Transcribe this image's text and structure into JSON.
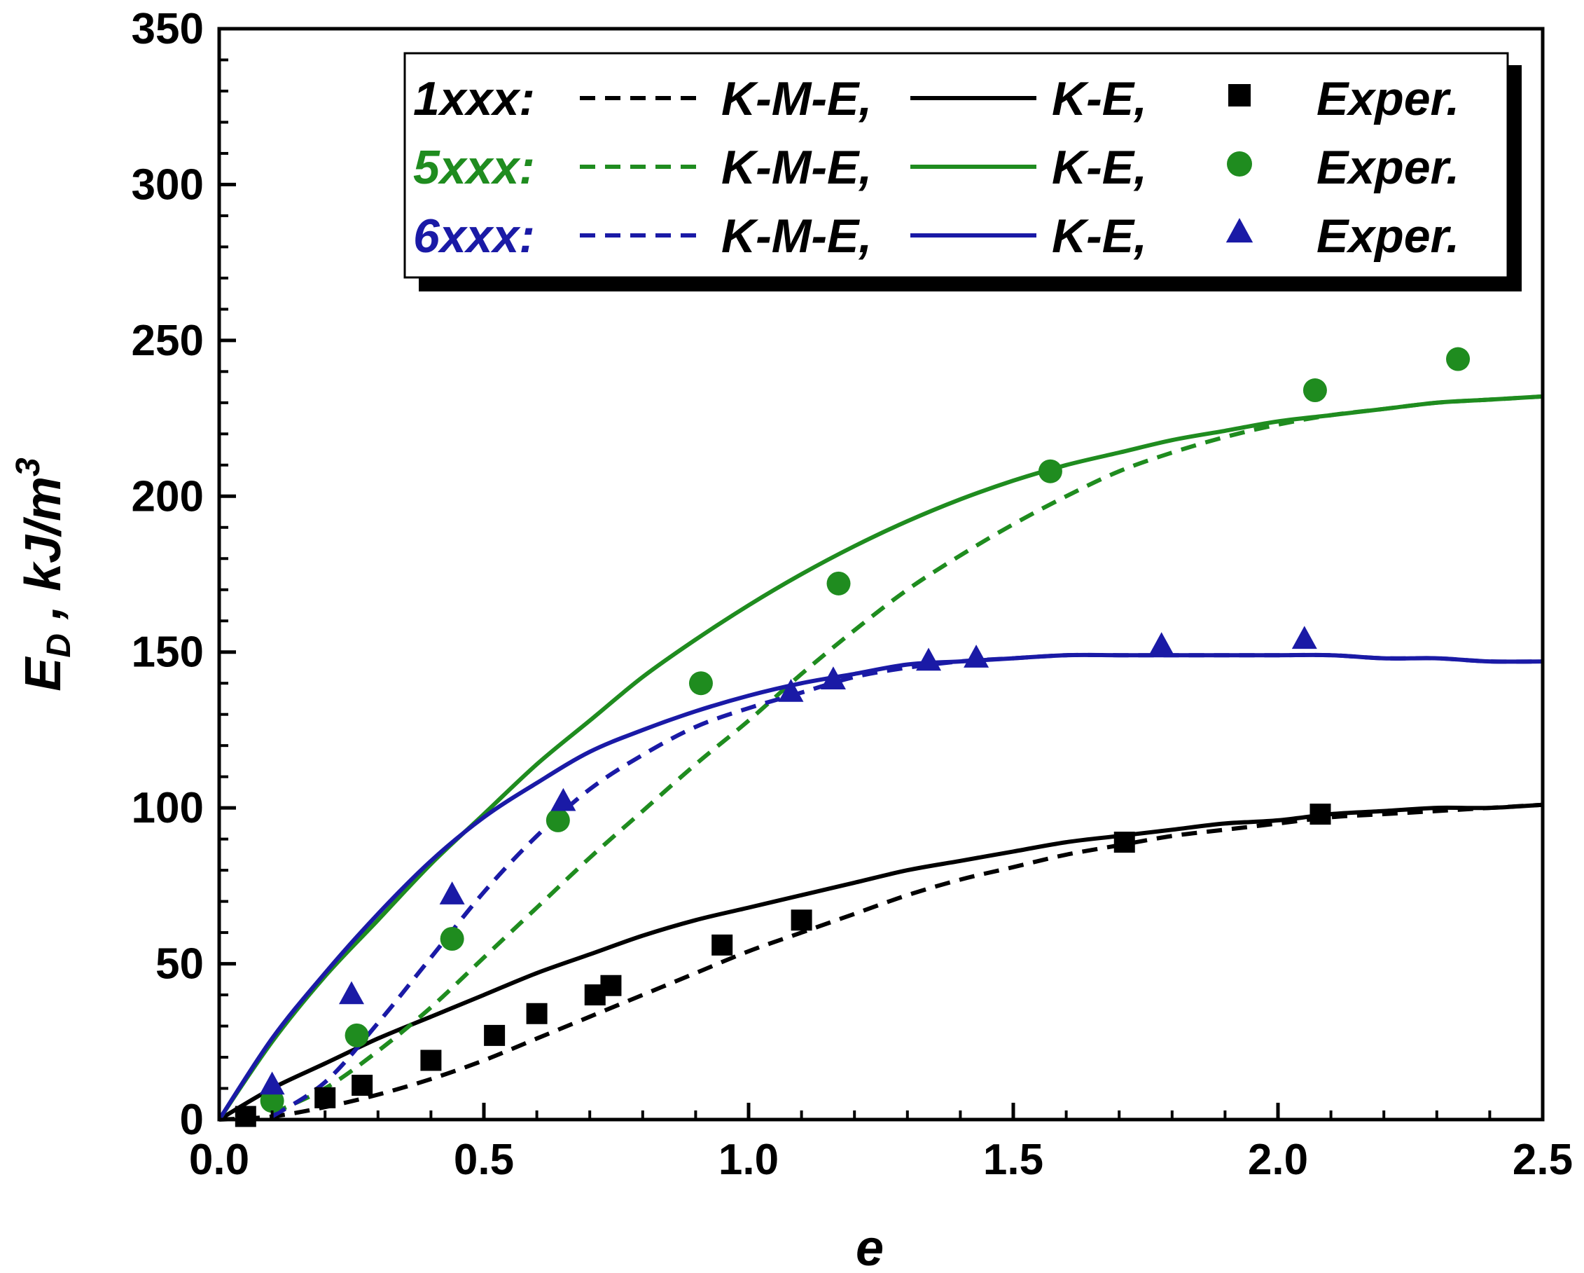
{
  "chart_data": {
    "type": "line",
    "title": "",
    "xlabel": "e",
    "ylabel_main": "E",
    "ylabel_sub": "D",
    "ylabel_unit": " , kJ/m",
    "ylabel_sup": "3",
    "xlim": [
      0,
      2.5
    ],
    "ylim": [
      0,
      350
    ],
    "xticks": [
      0,
      0.5,
      1.0,
      1.5,
      2.0,
      2.5
    ],
    "xtick_labels": [
      "0.0",
      "0.5",
      "1.0",
      "1.5",
      "2.0",
      "2.5"
    ],
    "yticks": [
      0,
      50,
      100,
      150,
      200,
      250,
      300,
      350
    ],
    "ytick_labels": [
      "0",
      "50",
      "100",
      "150",
      "200",
      "250",
      "300",
      "350"
    ],
    "grid": false,
    "legend_position": "top-right",
    "groups": [
      {
        "name": "1xxx:",
        "color": "#000000",
        "marker": "square",
        "kme_label": "K-M-E,",
        "ke_label": "K-E,",
        "exper_label": "Exper.",
        "kme_curve": {
          "x": [
            0,
            0.1,
            0.2,
            0.3,
            0.4,
            0.5,
            0.6,
            0.7,
            0.8,
            0.9,
            1.0,
            1.1,
            1.2,
            1.3,
            1.4,
            1.5,
            1.6,
            1.7,
            1.8,
            1.9,
            2.0,
            2.1,
            2.2,
            2.3,
            2.4,
            2.5
          ],
          "y": [
            0,
            1,
            4,
            8,
            13,
            19,
            26,
            33,
            40,
            47,
            54,
            60,
            66,
            72,
            77,
            81,
            85,
            88,
            91,
            93,
            95,
            97,
            98,
            99,
            100,
            101
          ]
        },
        "ke_curve": {
          "x": [
            0,
            0.1,
            0.2,
            0.3,
            0.4,
            0.5,
            0.6,
            0.7,
            0.8,
            0.9,
            1.0,
            1.1,
            1.2,
            1.3,
            1.4,
            1.5,
            1.6,
            1.7,
            1.8,
            1.9,
            2.0,
            2.1,
            2.2,
            2.3,
            2.4,
            2.5
          ],
          "y": [
            0,
            10,
            18,
            26,
            33,
            40,
            47,
            53,
            59,
            64,
            68,
            72,
            76,
            80,
            83,
            86,
            89,
            91,
            93,
            95,
            96,
            98,
            99,
            100,
            100,
            101
          ]
        },
        "exper_points": {
          "x": [
            0.05,
            0.2,
            0.27,
            0.4,
            0.52,
            0.6,
            0.71,
            0.74,
            0.95,
            1.1,
            1.71,
            2.08
          ],
          "y": [
            1,
            7,
            11,
            19,
            27,
            34,
            40,
            43,
            56,
            64,
            89,
            98
          ]
        }
      },
      {
        "name": "5xxx:",
        "color": "#1f8c1f",
        "marker": "circle",
        "kme_label": "K-M-E,",
        "ke_label": "K-E,",
        "exper_label": "Exper.",
        "kme_curve": {
          "x": [
            0.1,
            0.2,
            0.3,
            0.4,
            0.5,
            0.6,
            0.7,
            0.8,
            0.9,
            1.0,
            1.1,
            1.2,
            1.3,
            1.4,
            1.5,
            1.6,
            1.7,
            1.8,
            1.9,
            2.0,
            2.1,
            2.2,
            2.3,
            2.4,
            2.5
          ],
          "y": [
            2,
            10,
            22,
            36,
            52,
            68,
            84,
            99,
            114,
            128,
            143,
            157,
            170,
            181,
            191,
            200,
            208,
            214,
            219,
            223,
            226,
            228,
            230,
            231,
            232
          ]
        },
        "ke_curve": {
          "x": [
            0,
            0.1,
            0.2,
            0.3,
            0.4,
            0.5,
            0.6,
            0.7,
            0.8,
            0.9,
            1.0,
            1.1,
            1.2,
            1.3,
            1.4,
            1.5,
            1.6,
            1.7,
            1.8,
            1.9,
            2.0,
            2.1,
            2.2,
            2.3,
            2.4,
            2.5
          ],
          "y": [
            0,
            25,
            46,
            64,
            82,
            98,
            114,
            128,
            142,
            154,
            165,
            175,
            184,
            192,
            199,
            205,
            210,
            214,
            218,
            221,
            224,
            226,
            228,
            230,
            231,
            232
          ]
        },
        "exper_points": {
          "x": [
            0.1,
            0.26,
            0.44,
            0.64,
            0.91,
            1.17,
            1.57,
            2.07,
            2.34
          ],
          "y": [
            6,
            27,
            58,
            96,
            140,
            172,
            208,
            234,
            244
          ]
        }
      },
      {
        "name": "6xxx:",
        "color": "#1a1aa6",
        "marker": "triangle",
        "kme_label": "K-M-E,",
        "ke_label": "K-E,",
        "exper_label": "Exper.",
        "kme_curve": {
          "x": [
            0.1,
            0.2,
            0.3,
            0.4,
            0.5,
            0.6,
            0.7,
            0.8,
            0.9,
            1.0,
            1.1,
            1.2,
            1.3,
            1.4,
            1.5,
            1.6,
            1.7,
            1.8,
            1.9,
            2.0,
            2.1,
            2.2,
            2.3,
            2.4,
            2.5
          ],
          "y": [
            1,
            12,
            31,
            52,
            73,
            91,
            106,
            117,
            126,
            132,
            137,
            142,
            145,
            147,
            148,
            149,
            149,
            149,
            149,
            149,
            149,
            148,
            148,
            147,
            147
          ]
        },
        "ke_curve": {
          "x": [
            0,
            0.1,
            0.2,
            0.3,
            0.4,
            0.5,
            0.6,
            0.7,
            0.8,
            0.9,
            1.0,
            1.1,
            1.2,
            1.3,
            1.4,
            1.5,
            1.6,
            1.7,
            1.8,
            1.9,
            2.0,
            2.1,
            2.2,
            2.3,
            2.4,
            2.5
          ],
          "y": [
            0,
            26,
            47,
            66,
            83,
            97,
            108,
            118,
            125,
            131,
            136,
            140,
            143,
            146,
            147,
            148,
            149,
            149,
            149,
            149,
            149,
            149,
            148,
            148,
            147,
            147
          ]
        },
        "exper_points": {
          "x": [
            0.1,
            0.25,
            0.44,
            0.65,
            1.08,
            1.16,
            1.34,
            1.43,
            1.78,
            2.05
          ],
          "y": [
            11,
            40,
            72,
            102,
            137,
            141,
            147,
            148,
            152,
            154
          ]
        }
      }
    ]
  }
}
